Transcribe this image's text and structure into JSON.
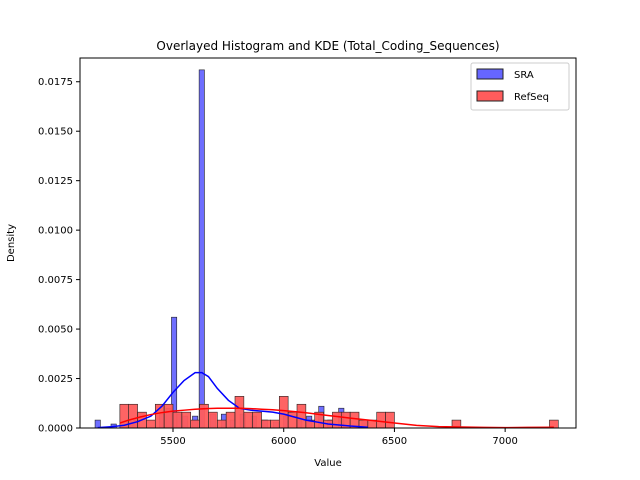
{
  "chart_data": {
    "type": "bar",
    "title": "Overlayed Histogram and KDE (Total_Coding_Sequences)",
    "xlabel": "Value",
    "ylabel": "Density",
    "xlim": [
      5080,
      7320
    ],
    "ylim": [
      0,
      0.0187
    ],
    "xticks": [
      5500,
      6000,
      6500,
      7000
    ],
    "yticks": [
      0.0,
      0.0025,
      0.005,
      0.0075,
      0.01,
      0.0125,
      0.015,
      0.0175
    ],
    "ytick_labels": [
      "0.0000",
      "0.0025",
      "0.0050",
      "0.0075",
      "0.0100",
      "0.0125",
      "0.0150",
      "0.0175"
    ],
    "legend": {
      "position": "top-right",
      "entries": [
        "SRA",
        "RefSeq"
      ]
    },
    "series": [
      {
        "name": "SRA",
        "color": "#0000ff",
        "fill_color": "#6666ff",
        "bin_width": 24,
        "bins": [
          {
            "x": 5160,
            "density": 0.0004
          },
          {
            "x": 5232,
            "density": 0.0002
          },
          {
            "x": 5305,
            "density": 0.0003
          },
          {
            "x": 5335,
            "density": 0.0004
          },
          {
            "x": 5450,
            "density": 0.0007
          },
          {
            "x": 5480,
            "density": 0.001
          },
          {
            "x": 5505,
            "density": 0.0056
          },
          {
            "x": 5530,
            "density": 0.0007
          },
          {
            "x": 5555,
            "density": 0.0006
          },
          {
            "x": 5600,
            "density": 0.0006
          },
          {
            "x": 5630,
            "density": 0.0181
          },
          {
            "x": 5680,
            "density": 0.0007
          },
          {
            "x": 5730,
            "density": 0.0007
          },
          {
            "x": 5770,
            "density": 0.0004
          },
          {
            "x": 5815,
            "density": 0.0007
          },
          {
            "x": 5865,
            "density": 0.0006
          },
          {
            "x": 5915,
            "density": 0.0004
          },
          {
            "x": 5965,
            "density": 0.0003
          },
          {
            "x": 6010,
            "density": 0.0006
          },
          {
            "x": 6070,
            "density": 0.0004
          },
          {
            "x": 6115,
            "density": 0.0006
          },
          {
            "x": 6170,
            "density": 0.0011
          },
          {
            "x": 6210,
            "density": 0.0004
          },
          {
            "x": 6260,
            "density": 0.001
          },
          {
            "x": 6365,
            "density": 0.0004
          }
        ]
      },
      {
        "name": "RefSeq",
        "color": "#ff0000",
        "fill_color": "#ff5c5c",
        "bin_width": 40,
        "bins": [
          {
            "x": 5280,
            "density": 0.0012
          },
          {
            "x": 5320,
            "density": 0.0012
          },
          {
            "x": 5360,
            "density": 0.0008
          },
          {
            "x": 5400,
            "density": 0.0004
          },
          {
            "x": 5440,
            "density": 0.0012
          },
          {
            "x": 5480,
            "density": 0.0012
          },
          {
            "x": 5520,
            "density": 0.0008
          },
          {
            "x": 5560,
            "density": 0.0008
          },
          {
            "x": 5600,
            "density": 0.0004
          },
          {
            "x": 5640,
            "density": 0.0012
          },
          {
            "x": 5680,
            "density": 0.0008
          },
          {
            "x": 5720,
            "density": 0.0004
          },
          {
            "x": 5760,
            "density": 0.0008
          },
          {
            "x": 5800,
            "density": 0.0016
          },
          {
            "x": 5840,
            "density": 0.0008
          },
          {
            "x": 5880,
            "density": 0.0008
          },
          {
            "x": 5920,
            "density": 0.0004
          },
          {
            "x": 5960,
            "density": 0.0004
          },
          {
            "x": 6000,
            "density": 0.0016
          },
          {
            "x": 6040,
            "density": 0.0008
          },
          {
            "x": 6080,
            "density": 0.0012
          },
          {
            "x": 6120,
            "density": 0.0004
          },
          {
            "x": 6160,
            "density": 0.0008
          },
          {
            "x": 6200,
            "density": 0.0004
          },
          {
            "x": 6240,
            "density": 0.0008
          },
          {
            "x": 6280,
            "density": 0.0008
          },
          {
            "x": 6320,
            "density": 0.0008
          },
          {
            "x": 6360,
            "density": 0.0004
          },
          {
            "x": 6400,
            "density": 0.0004
          },
          {
            "x": 6440,
            "density": 0.0008
          },
          {
            "x": 6480,
            "density": 0.0008
          },
          {
            "x": 6780,
            "density": 0.0004
          },
          {
            "x": 7220,
            "density": 0.0004
          }
        ]
      }
    ],
    "kde": [
      {
        "name": "SRA",
        "color": "#0000ff",
        "points": [
          [
            5160,
            2e-05
          ],
          [
            5220,
            6e-05
          ],
          [
            5280,
            0.00014
          ],
          [
            5340,
            0.00032
          ],
          [
            5400,
            0.0006
          ],
          [
            5450,
            0.0011
          ],
          [
            5500,
            0.0018
          ],
          [
            5550,
            0.0024
          ],
          [
            5600,
            0.0028
          ],
          [
            5630,
            0.0028
          ],
          [
            5660,
            0.0026
          ],
          [
            5700,
            0.002
          ],
          [
            5750,
            0.0014
          ],
          [
            5800,
            0.001
          ],
          [
            5850,
            0.0009
          ],
          [
            5900,
            0.00085
          ],
          [
            5950,
            0.0008
          ],
          [
            6000,
            0.0007
          ],
          [
            6050,
            0.00055
          ],
          [
            6100,
            0.0004
          ],
          [
            6150,
            0.0003
          ],
          [
            6200,
            0.0002
          ],
          [
            6250,
            0.00015
          ],
          [
            6300,
            0.0001
          ],
          [
            6380,
            4e-05
          ]
        ]
      },
      {
        "name": "RefSeq",
        "color": "#ff0000",
        "points": [
          [
            5260,
            0.00025
          ],
          [
            5300,
            0.0004
          ],
          [
            5350,
            0.00055
          ],
          [
            5400,
            0.00068
          ],
          [
            5450,
            0.00078
          ],
          [
            5500,
            0.00085
          ],
          [
            5550,
            0.0009
          ],
          [
            5600,
            0.00095
          ],
          [
            5650,
            0.00098
          ],
          [
            5700,
            0.001
          ],
          [
            5750,
            0.001
          ],
          [
            5800,
            0.001
          ],
          [
            5850,
            0.00098
          ],
          [
            5900,
            0.00095
          ],
          [
            5950,
            0.00092
          ],
          [
            6000,
            0.00088
          ],
          [
            6050,
            0.00083
          ],
          [
            6100,
            0.00077
          ],
          [
            6150,
            0.0007
          ],
          [
            6200,
            0.00063
          ],
          [
            6250,
            0.00057
          ],
          [
            6300,
            0.0005
          ],
          [
            6400,
            0.00038
          ],
          [
            6500,
            0.00025
          ],
          [
            6600,
            0.00013
          ],
          [
            6700,
            7e-05
          ],
          [
            6800,
            5e-05
          ],
          [
            6900,
            3e-05
          ],
          [
            7000,
            2e-05
          ],
          [
            7100,
            3e-05
          ],
          [
            7220,
            4e-05
          ]
        ]
      }
    ]
  }
}
